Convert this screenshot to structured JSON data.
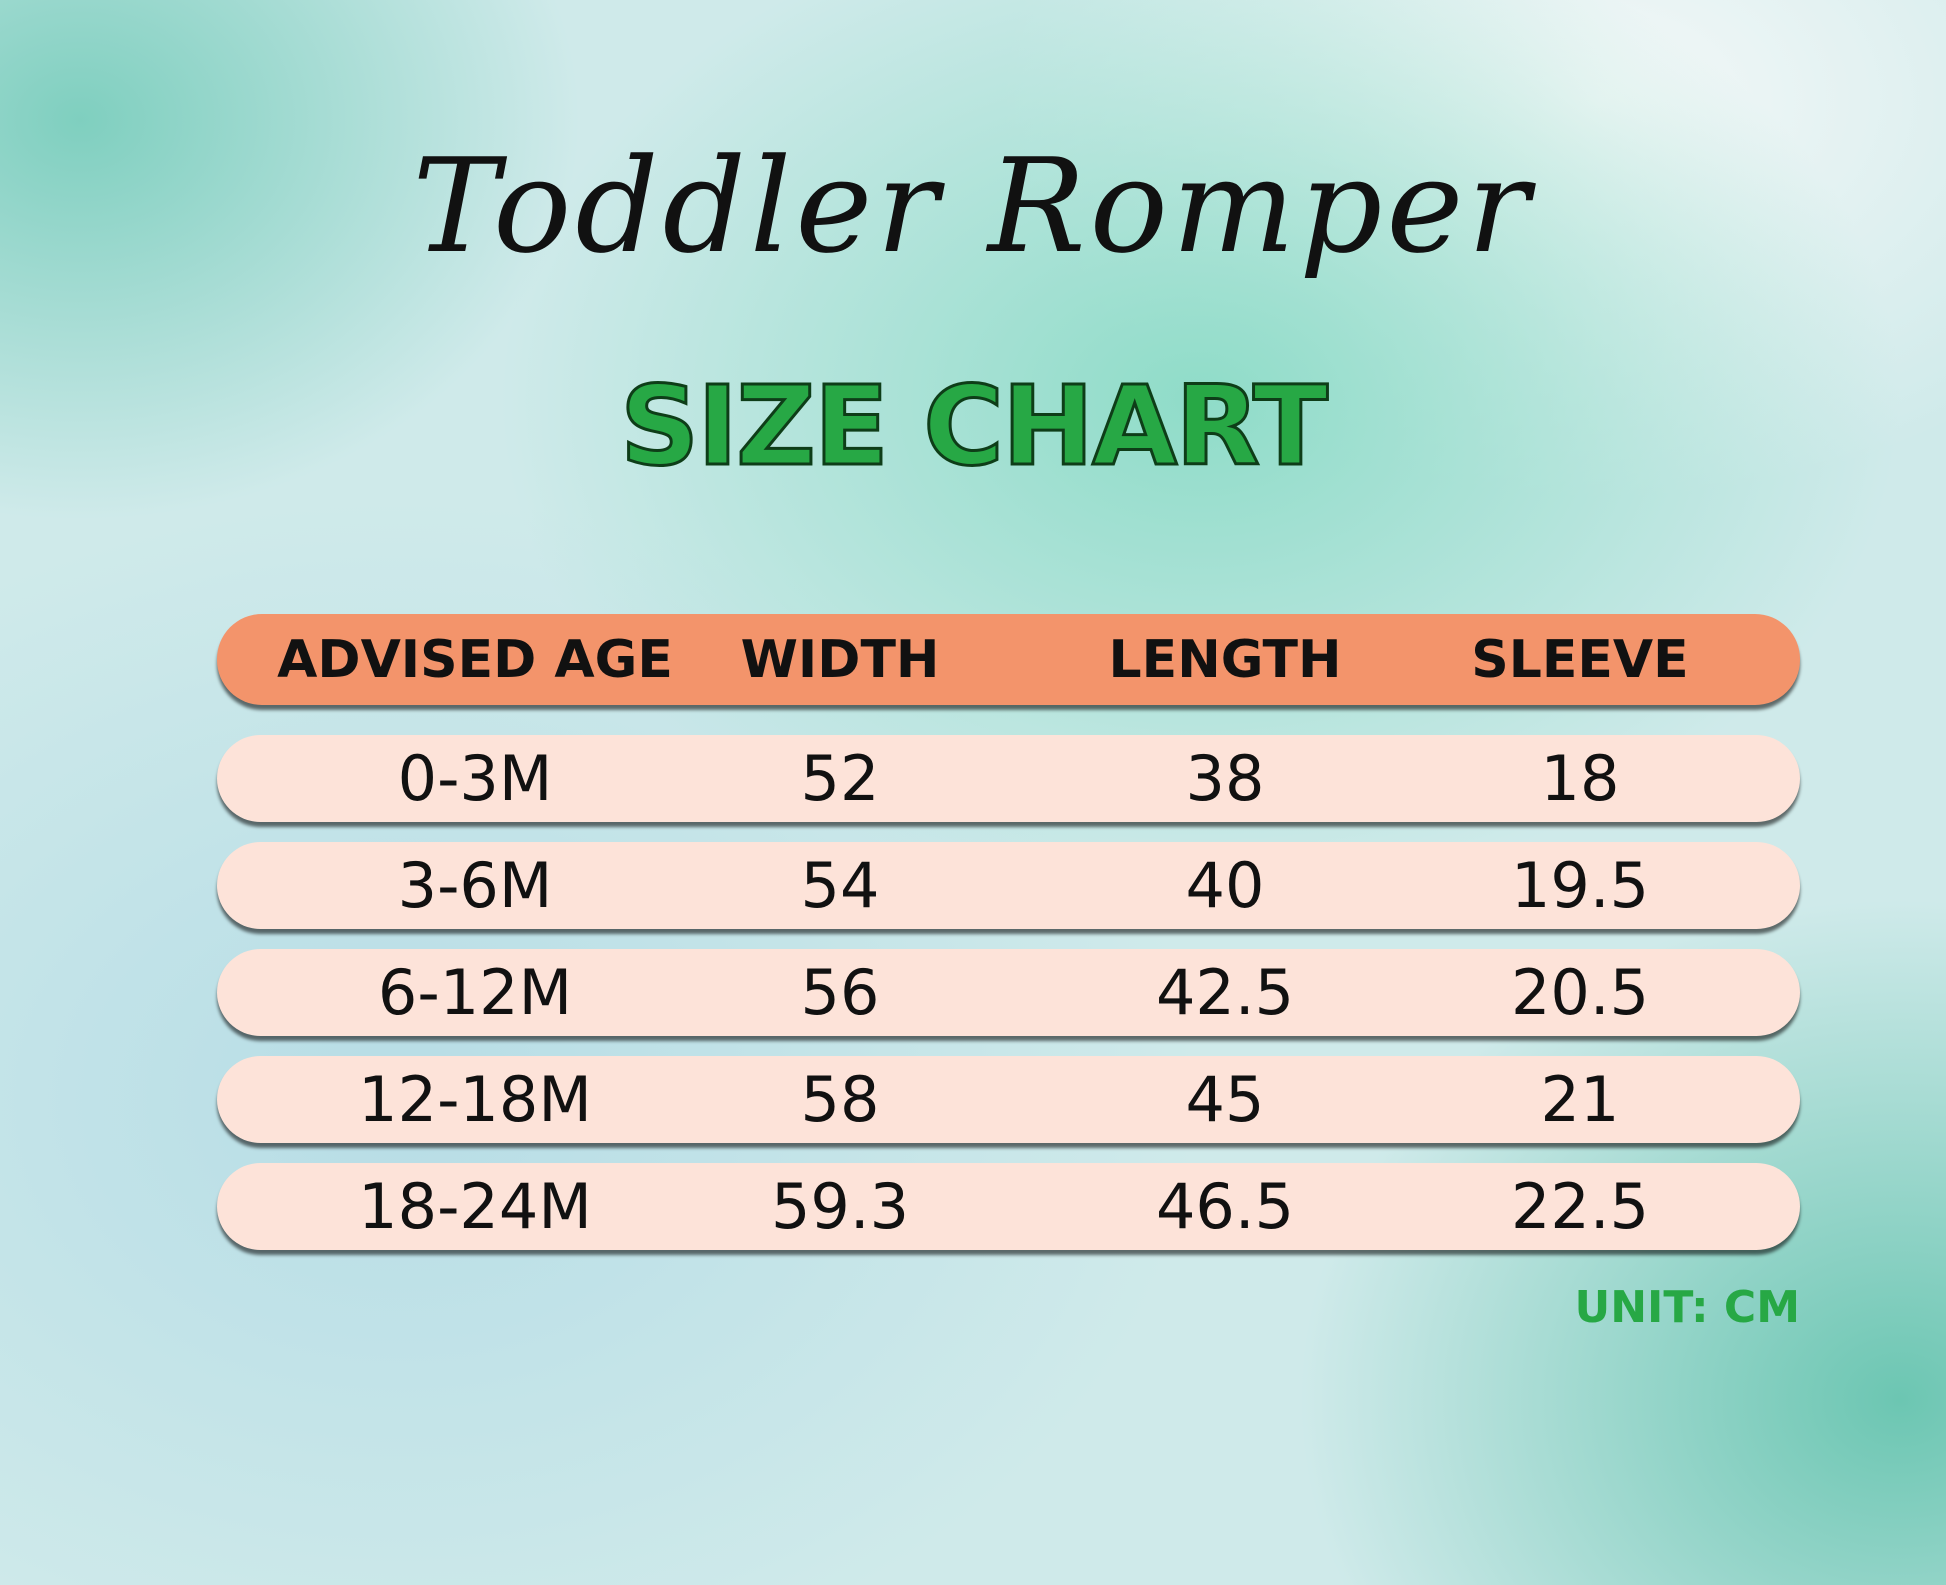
{
  "title": "Toddler Romper",
  "subtitle": "SIZE CHART",
  "table": {
    "headers": [
      "ADVISED AGE",
      "WIDTH",
      "LENGTH",
      "SLEEVE"
    ],
    "rows": [
      [
        "0-3M",
        "52",
        "38",
        "18"
      ],
      [
        "3-6M",
        "54",
        "40",
        "19.5"
      ],
      [
        "6-12M",
        "56",
        "42.5",
        "20.5"
      ],
      [
        "12-18M",
        "58",
        "45",
        "21"
      ],
      [
        "18-24M",
        "59.3",
        "46.5",
        "22.5"
      ]
    ]
  },
  "unit": "UNIT: CM",
  "colors": {
    "header": "#f3946b",
    "row": "#fde3d9",
    "accent": "#27a845"
  }
}
